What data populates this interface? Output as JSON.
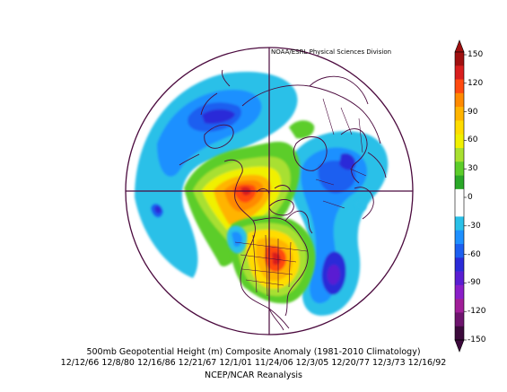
{
  "credit": "NOAA/ESRL Physical Sciences Division",
  "title": "500mb Geopotential Height (m) Composite Anomaly (1981-2010 Climatology)",
  "dates": "12/12/66 12/8/80 12/16/86 12/21/67 12/1/01 11/24/06 12/3/05 12/20/77 12/3/73 12/16/92",
  "source": "NCEP/NCAR Reanalysis",
  "colorbar": {
    "labels": [
      "150",
      "120",
      "90",
      "60",
      "30",
      "0",
      "-30",
      "-60",
      "-90",
      "-120",
      "-150"
    ],
    "colors": [
      "#a01010",
      "#d81e1e",
      "#ff4a10",
      "#ff8a00",
      "#ffb400",
      "#ffdc00",
      "#f0f000",
      "#a8e030",
      "#5ccd2a",
      "#2aa828",
      "#ffffff",
      "#ffffff",
      "#2ac0e8",
      "#1e90ff",
      "#1c5ff0",
      "#2b2bd8",
      "#5a1ed2",
      "#8a1ec8",
      "#a01e98",
      "#6e146e",
      "#3c0a3c"
    ]
  },
  "map": {
    "projection": "north polar stereographic",
    "boundary_color": "#4b0a3e"
  }
}
